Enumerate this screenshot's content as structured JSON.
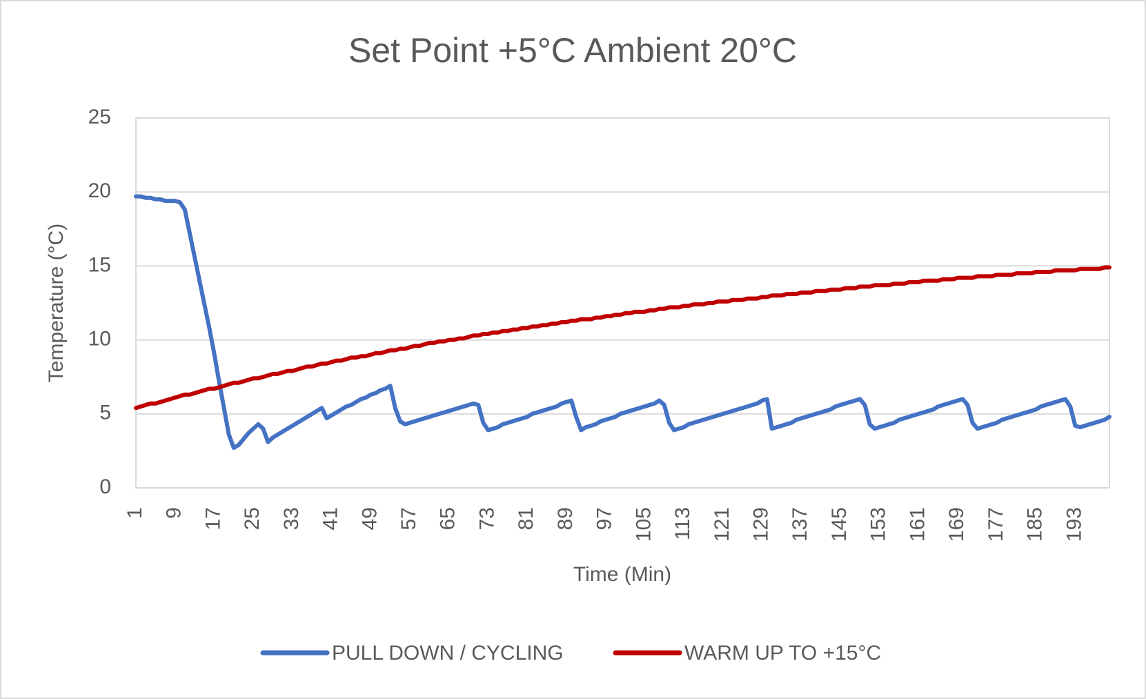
{
  "chart_data": {
    "type": "line",
    "title": "Set Point +5°C Ambient 20°C",
    "x_label": "Time (Min)",
    "y_label": "Temperature (°C)",
    "categories": [
      "1",
      null,
      null,
      null,
      null,
      null,
      null,
      null,
      "9",
      null,
      null,
      null,
      null,
      null,
      null,
      null,
      "17",
      null,
      null,
      null,
      null,
      null,
      null,
      null,
      "25",
      null,
      null,
      null,
      null,
      null,
      null,
      null,
      "33",
      null,
      null,
      null,
      null,
      null,
      null,
      null,
      "41",
      null,
      null,
      null,
      null,
      null,
      null,
      null,
      "49",
      null,
      null,
      null,
      null,
      null,
      null,
      null,
      "57",
      null,
      null,
      null,
      null,
      null,
      null,
      null,
      "65",
      null,
      null,
      null,
      null,
      null,
      null,
      null,
      "73",
      null,
      null,
      null,
      null,
      null,
      null,
      null,
      "81",
      null,
      null,
      null,
      null,
      null,
      null,
      null,
      "89",
      null,
      null,
      null,
      null,
      null,
      null,
      null,
      "97",
      null,
      null,
      null,
      null,
      null,
      null,
      null,
      "105",
      null,
      null,
      null,
      null,
      null,
      null,
      null,
      "113",
      null,
      null,
      null,
      null,
      null,
      null,
      null,
      "121",
      null,
      null,
      null,
      null,
      null,
      null,
      null,
      "129",
      null,
      null,
      null,
      null,
      null,
      null,
      null,
      "137",
      null,
      null,
      null,
      null,
      null,
      null,
      null,
      "145",
      null,
      null,
      null,
      null,
      null,
      null,
      null,
      "153",
      null,
      null,
      null,
      null,
      null,
      null,
      null,
      "161",
      null,
      null,
      null,
      null,
      null,
      null,
      null,
      "169",
      null,
      null,
      null,
      null,
      null,
      null,
      null,
      "177",
      null,
      null,
      null,
      null,
      null,
      null,
      null,
      "185",
      null,
      null,
      null,
      null,
      null,
      null,
      null,
      "193",
      null,
      null,
      null,
      null,
      null,
      null,
      null
    ],
    "series": [
      {
        "name": "PULL DOWN / CYCLING",
        "color": "#4472c4",
        "values": [
          19.7,
          19.7,
          19.6,
          19.6,
          19.5,
          19.5,
          19.4,
          19.4,
          19.4,
          19.3,
          18.8,
          17.2,
          15.6,
          14.0,
          12.4,
          10.8,
          9.1,
          7.2,
          5.4,
          3.6,
          2.7,
          2.9,
          3.3,
          3.7,
          4.0,
          4.3,
          4.0,
          3.1,
          3.4,
          3.6,
          3.8,
          4.0,
          4.2,
          4.4,
          4.6,
          4.8,
          5.0,
          5.2,
          5.4,
          4.7,
          4.9,
          5.1,
          5.3,
          5.5,
          5.6,
          5.8,
          6.0,
          6.1,
          6.3,
          6.4,
          6.6,
          6.7,
          6.9,
          5.4,
          4.5,
          4.3,
          4.4,
          4.5,
          4.6,
          4.7,
          4.8,
          4.9,
          5.0,
          5.1,
          5.2,
          5.3,
          5.4,
          5.5,
          5.6,
          5.7,
          5.6,
          4.4,
          3.9,
          4.0,
          4.1,
          4.3,
          4.4,
          4.5,
          4.6,
          4.7,
          4.8,
          5.0,
          5.1,
          5.2,
          5.3,
          5.4,
          5.5,
          5.7,
          5.8,
          5.9,
          4.8,
          3.9,
          4.1,
          4.2,
          4.3,
          4.5,
          4.6,
          4.7,
          4.8,
          5.0,
          5.1,
          5.2,
          5.3,
          5.4,
          5.5,
          5.6,
          5.7,
          5.9,
          5.6,
          4.4,
          3.9,
          4.0,
          4.1,
          4.3,
          4.4,
          4.5,
          4.6,
          4.7,
          4.8,
          4.9,
          5.0,
          5.1,
          5.2,
          5.3,
          5.4,
          5.5,
          5.6,
          5.7,
          5.9,
          6.0,
          4.0,
          4.1,
          4.2,
          4.3,
          4.4,
          4.6,
          4.7,
          4.8,
          4.9,
          5.0,
          5.1,
          5.2,
          5.3,
          5.5,
          5.6,
          5.7,
          5.8,
          5.9,
          6.0,
          5.6,
          4.3,
          4.0,
          4.1,
          4.2,
          4.3,
          4.4,
          4.6,
          4.7,
          4.8,
          4.9,
          5.0,
          5.1,
          5.2,
          5.3,
          5.5,
          5.6,
          5.7,
          5.8,
          5.9,
          6.0,
          5.6,
          4.4,
          4.0,
          4.1,
          4.2,
          4.3,
          4.4,
          4.6,
          4.7,
          4.8,
          4.9,
          5.0,
          5.1,
          5.2,
          5.3,
          5.5,
          5.6,
          5.7,
          5.8,
          5.9,
          6.0,
          5.5,
          4.2,
          4.1,
          4.2,
          4.3,
          4.4,
          4.5,
          4.6,
          4.8
        ]
      },
      {
        "name": "WARM UP TO +15°C",
        "color": "#c00000",
        "values": [
          5.4,
          5.5,
          5.6,
          5.7,
          5.7,
          5.8,
          5.9,
          6.0,
          6.1,
          6.2,
          6.3,
          6.3,
          6.4,
          6.5,
          6.6,
          6.7,
          6.7,
          6.8,
          6.9,
          7.0,
          7.1,
          7.1,
          7.2,
          7.3,
          7.4,
          7.4,
          7.5,
          7.6,
          7.7,
          7.7,
          7.8,
          7.9,
          7.9,
          8.0,
          8.1,
          8.2,
          8.2,
          8.3,
          8.4,
          8.4,
          8.5,
          8.6,
          8.6,
          8.7,
          8.8,
          8.8,
          8.9,
          8.9,
          9.0,
          9.1,
          9.1,
          9.2,
          9.3,
          9.3,
          9.4,
          9.4,
          9.5,
          9.6,
          9.6,
          9.7,
          9.8,
          9.8,
          9.9,
          9.9,
          10.0,
          10.0,
          10.1,
          10.1,
          10.2,
          10.3,
          10.3,
          10.4,
          10.4,
          10.5,
          10.5,
          10.6,
          10.6,
          10.7,
          10.7,
          10.8,
          10.8,
          10.9,
          10.9,
          11.0,
          11.0,
          11.1,
          11.1,
          11.2,
          11.2,
          11.3,
          11.3,
          11.4,
          11.4,
          11.4,
          11.5,
          11.5,
          11.6,
          11.6,
          11.7,
          11.7,
          11.8,
          11.8,
          11.9,
          11.9,
          11.9,
          12.0,
          12.0,
          12.1,
          12.1,
          12.2,
          12.2,
          12.2,
          12.3,
          12.3,
          12.4,
          12.4,
          12.4,
          12.5,
          12.5,
          12.6,
          12.6,
          12.6,
          12.7,
          12.7,
          12.7,
          12.8,
          12.8,
          12.8,
          12.9,
          12.9,
          13.0,
          13.0,
          13.0,
          13.1,
          13.1,
          13.1,
          13.2,
          13.2,
          13.2,
          13.3,
          13.3,
          13.3,
          13.4,
          13.4,
          13.4,
          13.5,
          13.5,
          13.5,
          13.6,
          13.6,
          13.6,
          13.7,
          13.7,
          13.7,
          13.7,
          13.8,
          13.8,
          13.8,
          13.9,
          13.9,
          13.9,
          14.0,
          14.0,
          14.0,
          14.0,
          14.1,
          14.1,
          14.1,
          14.2,
          14.2,
          14.2,
          14.2,
          14.3,
          14.3,
          14.3,
          14.3,
          14.4,
          14.4,
          14.4,
          14.4,
          14.5,
          14.5,
          14.5,
          14.5,
          14.6,
          14.6,
          14.6,
          14.6,
          14.7,
          14.7,
          14.7,
          14.7,
          14.7,
          14.8,
          14.8,
          14.8,
          14.8,
          14.8,
          14.9,
          14.9
        ]
      }
    ],
    "ylim": [
      0,
      25
    ],
    "yticks": [
      0,
      5,
      10,
      15,
      20,
      25
    ],
    "grid": true,
    "legend": "bottom"
  }
}
